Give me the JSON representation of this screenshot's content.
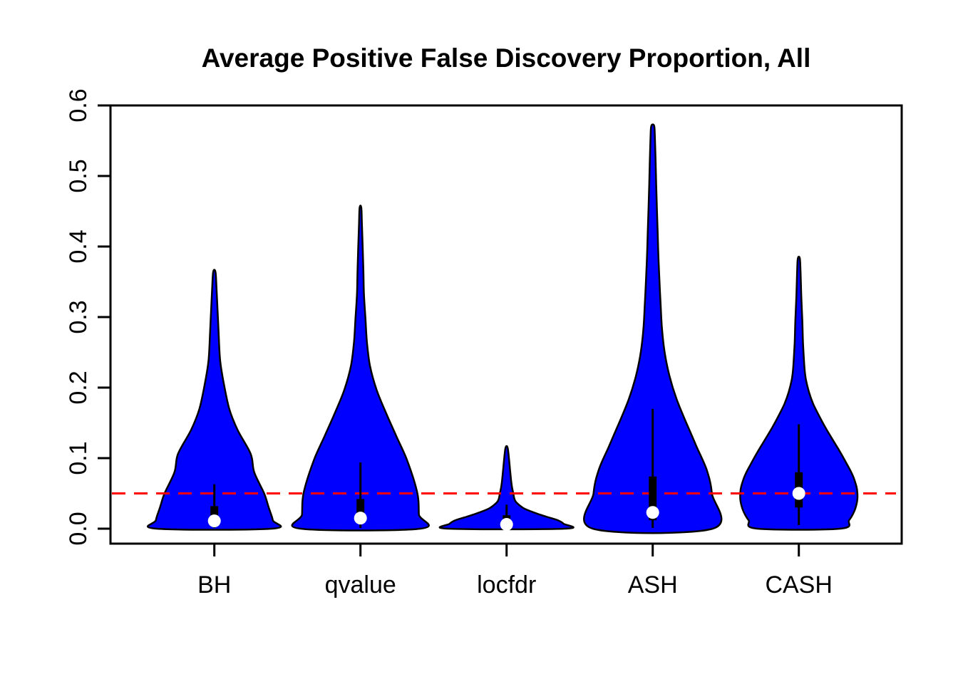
{
  "title": "Average Positive False Discovery Proportion, All",
  "chart_data": {
    "type": "violin",
    "title": "Average Positive False Discovery Proportion, All",
    "xlabel": "",
    "ylabel": "",
    "categories": [
      "BH",
      "qvalue",
      "locfdr",
      "ASH",
      "CASH"
    ],
    "ylim": [
      0.0,
      0.6
    ],
    "yticks": [
      0.0,
      0.1,
      0.2,
      0.3,
      0.4,
      0.5,
      0.6
    ],
    "ytick_labels": [
      "0.0",
      "0.1",
      "0.2",
      "0.3",
      "0.4",
      "0.5",
      "0.6"
    ],
    "grid": false,
    "legend": "none",
    "violin_fill": "#0000FF",
    "violin_stroke": "#000000",
    "reference_line": {
      "value": 0.05,
      "color": "#FF0000",
      "style": "dashed"
    },
    "series": [
      {
        "name": "BH",
        "max": 0.364,
        "whisker_high": 0.063,
        "q3": 0.032,
        "median": 0.011,
        "q1": 0.019,
        "whisker_low": 0.001,
        "profile": [
          [
            0,
            0.395
          ],
          [
            0.012,
            0.4
          ],
          [
            0.03,
            0.372
          ],
          [
            0.05,
            0.341
          ],
          [
            0.08,
            0.273
          ],
          [
            0.106,
            0.249
          ],
          [
            0.14,
            0.159
          ],
          [
            0.17,
            0.102
          ],
          [
            0.21,
            0.061
          ],
          [
            0.24,
            0.039
          ],
          [
            0.28,
            0.029
          ],
          [
            0.31,
            0.022
          ],
          [
            0.34,
            0.015
          ],
          [
            0.364,
            0.008
          ]
        ]
      },
      {
        "name": "qvalue",
        "max": 0.455,
        "whisker_high": 0.094,
        "q3": 0.042,
        "median": 0.015,
        "q1": 0.02,
        "whisker_low": 0.001,
        "profile": [
          [
            0,
            0.41
          ],
          [
            0.02,
            0.4
          ],
          [
            0.05,
            0.39
          ],
          [
            0.096,
            0.321
          ],
          [
            0.13,
            0.248
          ],
          [
            0.164,
            0.175
          ],
          [
            0.197,
            0.11
          ],
          [
            0.231,
            0.065
          ],
          [
            0.265,
            0.044
          ],
          [
            0.298,
            0.034
          ],
          [
            0.332,
            0.024
          ],
          [
            0.366,
            0.02
          ],
          [
            0.4,
            0.015
          ],
          [
            0.43,
            0.01
          ],
          [
            0.455,
            0.006
          ]
        ]
      },
      {
        "name": "locfdr",
        "max": 0.115,
        "whisker_high": 0.034,
        "q3": 0.019,
        "median": 0.006,
        "q1": 0.014,
        "whisker_low": 0.001,
        "profile": [
          [
            0,
            0.4
          ],
          [
            0.007,
            0.39
          ],
          [
            0.012,
            0.35
          ],
          [
            0.017,
            0.272
          ],
          [
            0.022,
            0.199
          ],
          [
            0.029,
            0.117
          ],
          [
            0.037,
            0.068
          ],
          [
            0.042,
            0.054
          ],
          [
            0.05,
            0.046
          ],
          [
            0.063,
            0.034
          ],
          [
            0.083,
            0.024
          ],
          [
            0.098,
            0.017
          ],
          [
            0.115,
            0.007
          ]
        ]
      },
      {
        "name": "ASH",
        "max": 0.571,
        "whisker_high": 0.17,
        "q3": 0.074,
        "median": 0.023,
        "q1": 0.012,
        "whisker_low": 0.001,
        "profile": [
          [
            0,
            0.41
          ],
          [
            0.05,
            0.405
          ],
          [
            0.083,
            0.37
          ],
          [
            0.116,
            0.301
          ],
          [
            0.151,
            0.228
          ],
          [
            0.184,
            0.163
          ],
          [
            0.217,
            0.114
          ],
          [
            0.251,
            0.081
          ],
          [
            0.285,
            0.063
          ],
          [
            0.318,
            0.054
          ],
          [
            0.353,
            0.046
          ],
          [
            0.386,
            0.039
          ],
          [
            0.419,
            0.034
          ],
          [
            0.453,
            0.029
          ],
          [
            0.487,
            0.024
          ],
          [
            0.52,
            0.02
          ],
          [
            0.554,
            0.015
          ],
          [
            0.571,
            0.01
          ]
        ]
      },
      {
        "name": "CASH",
        "max": 0.383,
        "whisker_high": 0.148,
        "q3": 0.08,
        "median": 0.05,
        "q1": 0.03,
        "whisker_low": 0.005,
        "profile": [
          [
            0,
            0.283
          ],
          [
            0.012,
            0.344
          ],
          [
            0.025,
            0.38
          ],
          [
            0.039,
            0.399
          ],
          [
            0.05,
            0.401
          ],
          [
            0.06,
            0.394
          ],
          [
            0.076,
            0.368
          ],
          [
            0.093,
            0.325
          ],
          [
            0.11,
            0.279
          ],
          [
            0.126,
            0.232
          ],
          [
            0.143,
            0.183
          ],
          [
            0.161,
            0.136
          ],
          [
            0.177,
            0.098
          ],
          [
            0.194,
            0.069
          ],
          [
            0.211,
            0.049
          ],
          [
            0.227,
            0.039
          ],
          [
            0.262,
            0.029
          ],
          [
            0.295,
            0.024
          ],
          [
            0.328,
            0.017
          ],
          [
            0.362,
            0.012
          ],
          [
            0.383,
            0.007
          ]
        ]
      }
    ]
  }
}
